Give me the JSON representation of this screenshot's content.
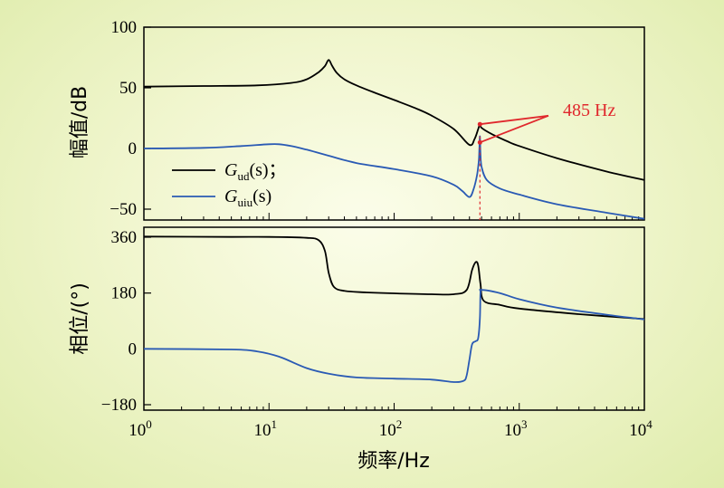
{
  "chart_data": {
    "type": "line",
    "x_scale": "log",
    "x_label": "频率/Hz",
    "x_range": [
      1,
      10000
    ],
    "x_ticks": [
      {
        "base": "10",
        "exp": "0"
      },
      {
        "base": "10",
        "exp": "1"
      },
      {
        "base": "10",
        "exp": "2"
      },
      {
        "base": "10",
        "exp": "3"
      },
      {
        "base": "10",
        "exp": "4"
      }
    ],
    "colors": {
      "gud": "#000000",
      "guiu": "#2a5ab4",
      "annotation": "#e0282d"
    },
    "legend": [
      {
        "symbol": "G",
        "sub": "ud",
        "text": "(s)；",
        "color": "#000000"
      },
      {
        "symbol": "G",
        "sub": "uiu",
        "text": "(s)",
        "color": "#2a5ab4"
      }
    ],
    "annotation": {
      "text": "485 Hz",
      "x": 485
    },
    "magnitude": {
      "y_label": "幅值/dB",
      "y_range": [
        -55,
        100
      ],
      "y_ticks": [
        "100",
        "50",
        "0",
        "−50"
      ],
      "series": [
        {
          "key": "gud",
          "points": [
            [
              1,
              51
            ],
            [
              3,
              51.5
            ],
            [
              8,
              52
            ],
            [
              15,
              54
            ],
            [
              20,
              57
            ],
            [
              25,
              63
            ],
            [
              28,
              68
            ],
            [
              30,
              73
            ],
            [
              32,
              68
            ],
            [
              35,
              62
            ],
            [
              40,
              57
            ],
            [
              50,
              52
            ],
            [
              70,
              46
            ],
            [
              100,
              40
            ],
            [
              150,
              33
            ],
            [
              200,
              27
            ],
            [
              300,
              16
            ],
            [
              400,
              3
            ],
            [
              440,
              8
            ],
            [
              470,
              16
            ],
            [
              485,
              20
            ],
            [
              500,
              17
            ],
            [
              600,
              12
            ],
            [
              800,
              6
            ],
            [
              1000,
              2
            ],
            [
              2000,
              -8
            ],
            [
              5000,
              -19
            ],
            [
              10000,
              -26
            ]
          ]
        },
        {
          "key": "guiu",
          "points": [
            [
              1,
              0
            ],
            [
              3,
              0.5
            ],
            [
              6,
              2
            ],
            [
              10,
              3.5
            ],
            [
              12,
              3.5
            ],
            [
              15,
              2
            ],
            [
              20,
              -1
            ],
            [
              30,
              -6
            ],
            [
              50,
              -12
            ],
            [
              100,
              -17
            ],
            [
              200,
              -23
            ],
            [
              300,
              -30
            ],
            [
              350,
              -35
            ],
            [
              400,
              -40
            ],
            [
              430,
              -34
            ],
            [
              460,
              -22
            ],
            [
              475,
              -10
            ],
            [
              480,
              0
            ],
            [
              485,
              10
            ],
            [
              490,
              -4
            ],
            [
              500,
              -15
            ],
            [
              550,
              -26
            ],
            [
              700,
              -33
            ],
            [
              1000,
              -38
            ],
            [
              2000,
              -46
            ],
            [
              5000,
              -53
            ],
            [
              10000,
              -58
            ]
          ]
        }
      ]
    },
    "phase": {
      "y_label": "相位/(°)",
      "y_range": [
        -180,
        380
      ],
      "y_ticks": [
        "360",
        "180",
        "0",
        "−180"
      ],
      "series": [
        {
          "key": "gud",
          "points": [
            [
              1,
              362
            ],
            [
              5,
              361
            ],
            [
              10,
              361
            ],
            [
              20,
              358
            ],
            [
              25,
              350
            ],
            [
              28,
              315
            ],
            [
              30,
              245
            ],
            [
              33,
              200
            ],
            [
              40,
              187
            ],
            [
              60,
              182
            ],
            [
              100,
              179
            ],
            [
              200,
              176
            ],
            [
              300,
              176
            ],
            [
              380,
              190
            ],
            [
              420,
              255
            ],
            [
              450,
              280
            ],
            [
              470,
              268
            ],
            [
              490,
              210
            ],
            [
              520,
              155
            ],
            [
              700,
              142
            ],
            [
              1000,
              130
            ],
            [
              3000,
              112
            ],
            [
              10000,
              96
            ]
          ]
        },
        {
          "key": "guiu",
          "points": [
            [
              1,
              0
            ],
            [
              5,
              -2
            ],
            [
              8,
              -8
            ],
            [
              12,
              -25
            ],
            [
              20,
              -62
            ],
            [
              30,
              -80
            ],
            [
              50,
              -92
            ],
            [
              100,
              -96
            ],
            [
              200,
              -99
            ],
            [
              300,
              -107
            ],
            [
              360,
              -103
            ],
            [
              380,
              -85
            ],
            [
              400,
              -35
            ],
            [
              420,
              15
            ],
            [
              450,
              25
            ],
            [
              470,
              35
            ],
            [
              485,
              100
            ],
            [
              490,
              180
            ],
            [
              500,
              190
            ],
            [
              700,
              180
            ],
            [
              1000,
              160
            ],
            [
              2000,
              133
            ],
            [
              5000,
              110
            ],
            [
              10000,
              95
            ]
          ]
        }
      ]
    }
  }
}
